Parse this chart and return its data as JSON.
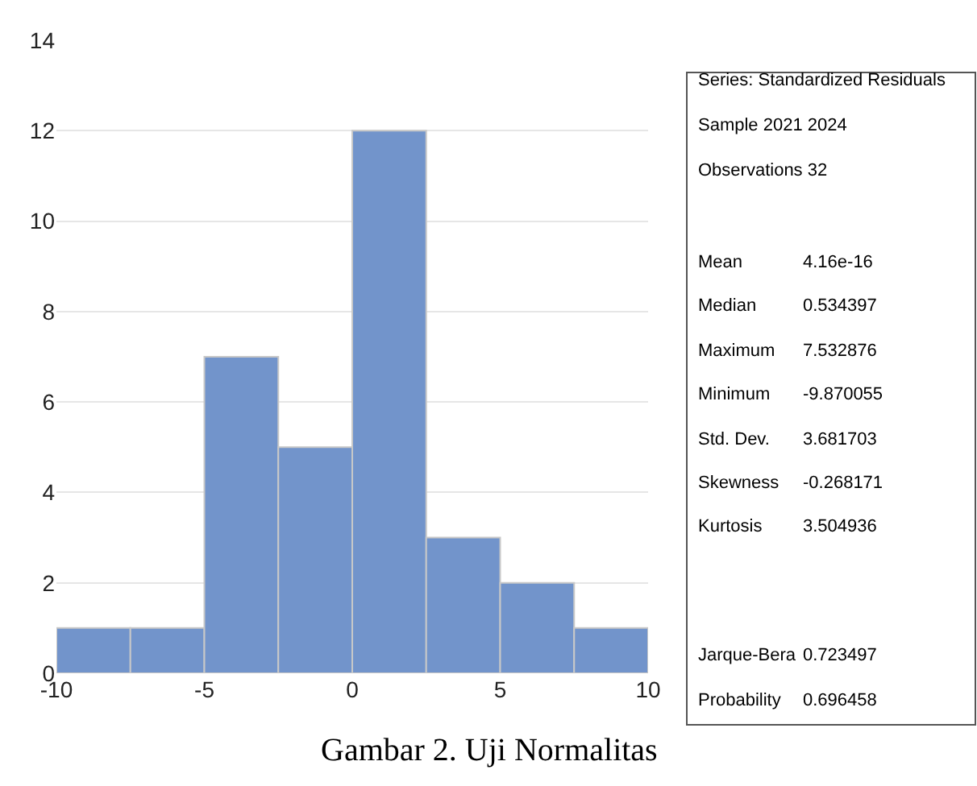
{
  "chart_data": {
    "type": "histogram",
    "bins": [
      -10,
      -7.5,
      -5,
      -2.5,
      0,
      2.5,
      5,
      7.5,
      10
    ],
    "values": [
      1,
      1,
      7,
      5,
      12,
      3,
      2,
      1
    ],
    "color": "#7294cb",
    "xlim": [
      -10,
      10
    ],
    "xticks": [
      -10,
      -5,
      0,
      5,
      10
    ],
    "ylim": [
      0,
      14
    ],
    "yticks": [
      0,
      2,
      4,
      6,
      8,
      10,
      12,
      14
    ],
    "grid": "y",
    "annotations": [
      "Series: Standardized Residuals",
      "Sample 2021 2024",
      "Observations 32",
      "Mean",
      "4.16e-16",
      "Median",
      "0.534397",
      "Maximum",
      "7.532876",
      "Minimum",
      "-9.870055",
      "Std. Dev.",
      "3.681703",
      "Skewness",
      "-0.268171",
      "Kurtosis",
      "3.504936",
      "Jarque-Bera",
      "0.723497",
      "Probability",
      "0.696458",
      "Gambar 2. Uji Normalitas"
    ]
  }
}
